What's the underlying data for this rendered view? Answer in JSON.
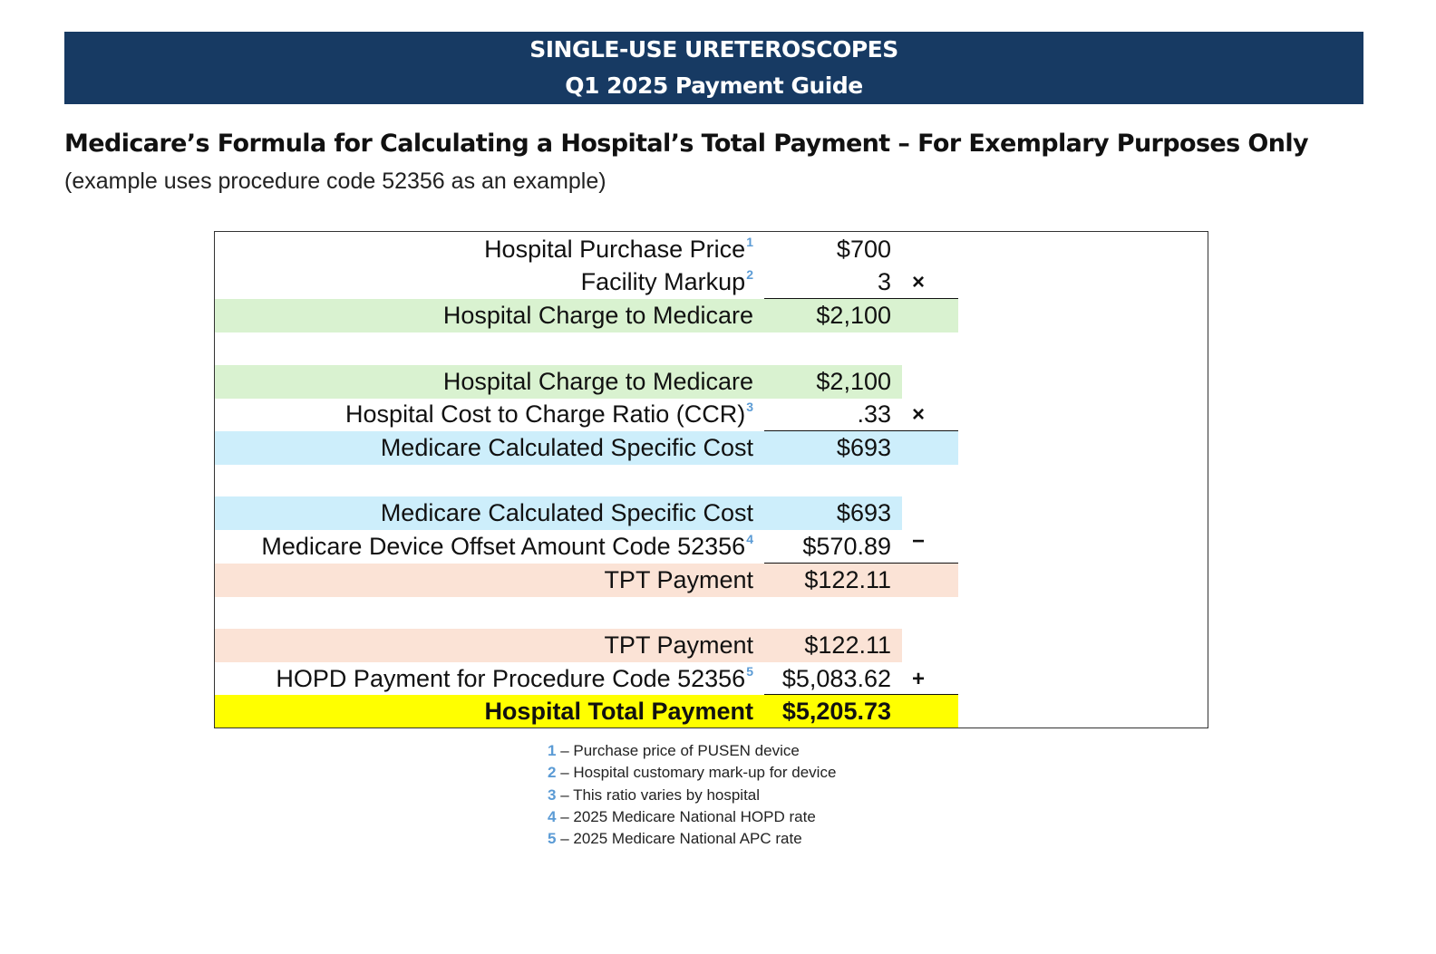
{
  "banner": {
    "line1": "SINGLE-USE URETEROSCOPES",
    "line2": "Q1 2025 Payment Guide"
  },
  "heading": "Medicare’s Formula for Calculating a Hospital’s Total Payment – For Exemplary Purposes Only",
  "subheading": "(example uses procedure code 52356 as an example)",
  "colors": {
    "banner": "#173a63",
    "green": "#d9f2d0",
    "blue": "#cdeefb",
    "peach": "#fbe3d6",
    "yellow": "#ffff00",
    "footnote_number": "#5b9bd5"
  },
  "rows": [
    {
      "label": "Hospital Purchase Price",
      "sup": "1",
      "value": "$700",
      "op": ""
    },
    {
      "label": "Facility Markup",
      "sup": "2",
      "value": "3",
      "op": "×"
    },
    {
      "label": "Hospital Charge to Medicare",
      "sup": "",
      "value": "$2,100",
      "op": ""
    },
    {
      "label": "Hospital Charge to Medicare",
      "sup": "",
      "value": "$2,100",
      "op": ""
    },
    {
      "label": "Hospital Cost to Charge Ratio (CCR)",
      "sup": "3",
      "value": ".33",
      "op": "×"
    },
    {
      "label": "Medicare Calculated Specific Cost",
      "sup": "",
      "value": "$693",
      "op": ""
    },
    {
      "label": "Medicare Calculated Specific Cost",
      "sup": "",
      "value": "$693",
      "op": ""
    },
    {
      "label": "Medicare Device Offset Amount Code 52356",
      "sup": "4",
      "value": "$570.89",
      "op": "−"
    },
    {
      "label": "TPT Payment",
      "sup": "",
      "value": "$122.11",
      "op": ""
    },
    {
      "label": "TPT Payment",
      "sup": "",
      "value": "$122.11",
      "op": ""
    },
    {
      "label": "HOPD Payment for Procedure Code 52356",
      "sup": "5",
      "value": "$5,083.62",
      "op": "+"
    },
    {
      "label": "Hospital Total Payment",
      "sup": "",
      "value": "$5,205.73",
      "op": ""
    }
  ],
  "footnotes": [
    {
      "num": "1",
      "text": " – Purchase price of PUSEN device"
    },
    {
      "num": "2",
      "text": " – Hospital customary mark-up for device"
    },
    {
      "num": "3",
      "text": " – This ratio varies by hospital"
    },
    {
      "num": "4",
      "text": " – 2025 Medicare National HOPD rate"
    },
    {
      "num": "5",
      "text": " – 2025 Medicare National APC rate"
    }
  ]
}
